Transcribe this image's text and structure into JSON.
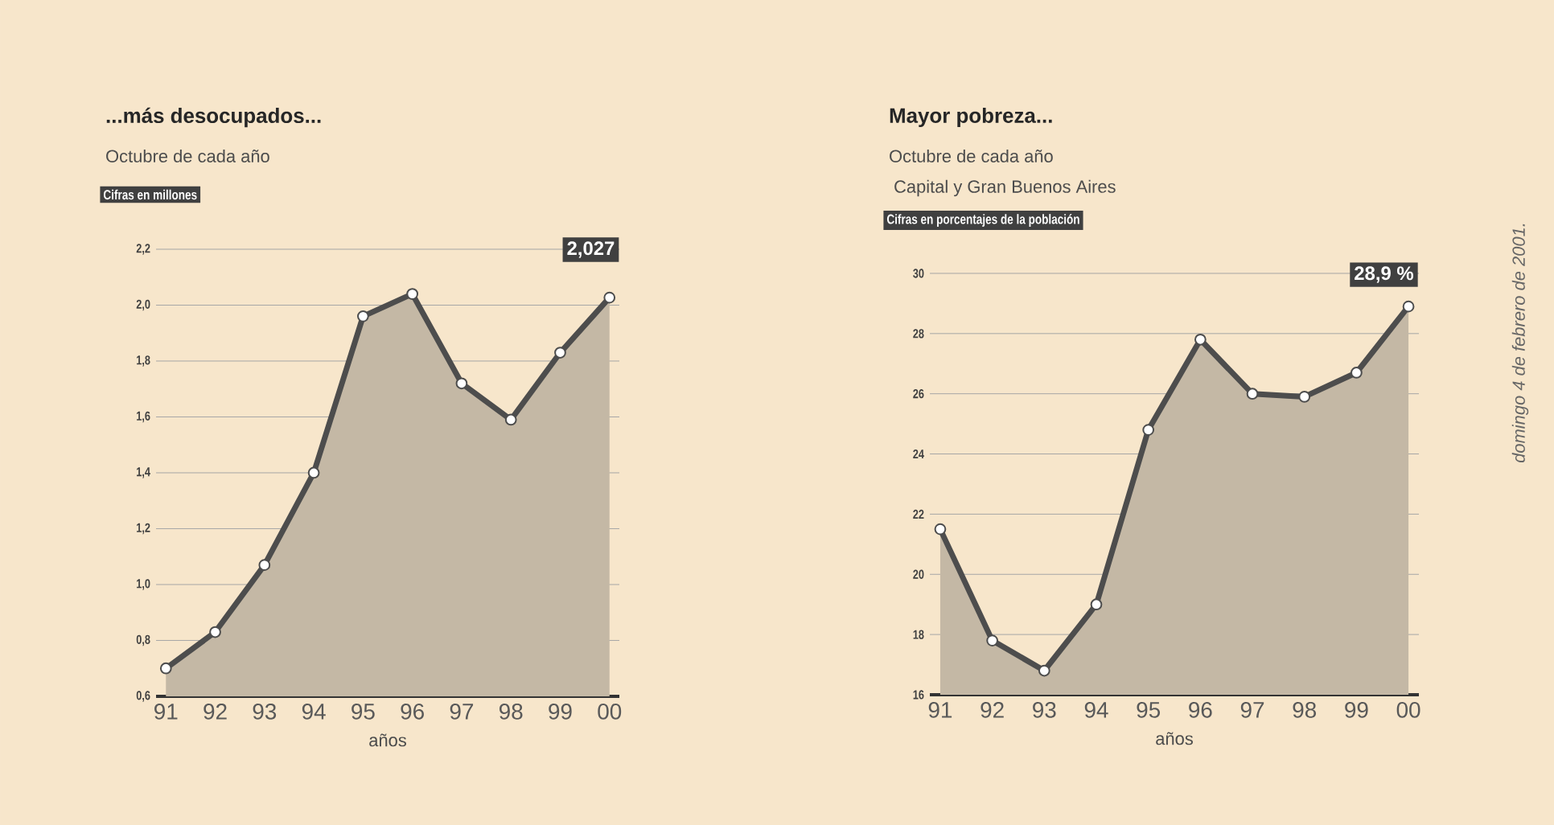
{
  "chart_data": [
    {
      "type": "area",
      "title": "...más desocupados...",
      "subtitle": "Octubre de cada año",
      "ylabel": "Cifras en millones",
      "xlabel": "años",
      "categories": [
        "91",
        "92",
        "93",
        "94",
        "95",
        "96",
        "97",
        "98",
        "99",
        "00"
      ],
      "series": [
        {
          "color": "#4d4d4d",
          "values": [
            0.7,
            0.83,
            1.07,
            1.4,
            1.96,
            2.04,
            1.72,
            1.59,
            1.83,
            2.027
          ]
        }
      ],
      "ylim": [
        0.6,
        2.2
      ],
      "yticks": [
        {
          "value": 0.6,
          "label": "0,6"
        },
        {
          "value": 0.8,
          "label": "0,8"
        },
        {
          "value": 1.0,
          "label": "1,0"
        },
        {
          "value": 1.2,
          "label": "1,2"
        },
        {
          "value": 1.4,
          "label": "1,4"
        },
        {
          "value": 1.6,
          "label": "1,6"
        },
        {
          "value": 1.8,
          "label": "1,8"
        },
        {
          "value": 2.0,
          "label": "2,0"
        },
        {
          "value": 2.2,
          "label": "2,2"
        }
      ],
      "grid": "y",
      "marker": "circle",
      "annotations": [
        {
          "text": "2,027",
          "x": "00",
          "y": 2.027
        }
      ]
    },
    {
      "type": "area",
      "title": "Mayor pobreza...",
      "subtitle": "Octubre de cada año",
      "ylabel": "Cifras en porcentajes de la población",
      "xlabel": "años",
      "categories": [
        "91",
        "92",
        "93",
        "94",
        "95",
        "96",
        "97",
        "98",
        "99",
        "00"
      ],
      "series": [
        {
          "color": "#4d4d4d",
          "values": [
            21.5,
            17.8,
            16.8,
            19.0,
            24.8,
            27.8,
            26.0,
            25.9,
            26.7,
            28.9
          ]
        }
      ],
      "ylim": [
        16,
        30
      ],
      "yticks": [
        16,
        18,
        20,
        22,
        24,
        26,
        28,
        30
      ],
      "grid": "y",
      "marker": "circle",
      "annotations": [
        {
          "text": "28,9 %",
          "x": "00",
          "y": 28.9
        },
        "Capital y Gran Buenos Aires",
        "domingo 4 de febrero de 2001."
      ]
    }
  ]
}
